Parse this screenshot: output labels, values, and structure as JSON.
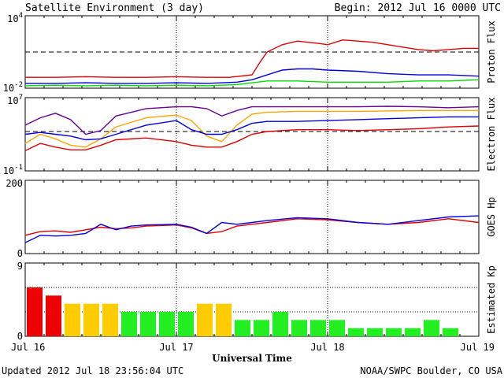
{
  "header": {
    "title": "Satellite Environment (3 day)",
    "begin": "Begin:  2012 Jul 16 0000 UTC"
  },
  "footer": {
    "updated": "Updated 2012 Jul 18 23:56:04 UTC",
    "credit": "NOAA/SWPC Boulder, CO USA",
    "xlabel": "Universal Time"
  },
  "x_ticks": [
    "Jul 16",
    "Jul 17",
    "Jul 18",
    "Jul 19"
  ],
  "chart_data": [
    {
      "type": "line",
      "panel": "proton",
      "ylabel": "Proton Flux",
      "y_ticks": [
        "10^4",
        "10^-2"
      ],
      "ylog": true,
      "ylim": [
        -2,
        4
      ],
      "x_unit": "days since Jul 16 0000 UTC",
      "threshold": 1,
      "series": [
        {
          "color": "#e00000",
          "x": [
            0,
            0.2,
            0.4,
            0.6,
            0.8,
            1.0,
            1.2,
            1.35,
            1.5,
            1.55,
            1.6,
            1.7,
            1.8,
            1.95,
            2.0,
            2.1,
            2.2,
            2.3,
            2.4,
            2.5,
            2.6,
            2.7,
            2.8,
            2.9,
            3.0
          ],
          "y": [
            -1.1,
            -1.1,
            -1.05,
            -1.1,
            -1.1,
            -1.05,
            -1.1,
            -1.1,
            -0.9,
            0.1,
            1.0,
            1.6,
            1.9,
            1.7,
            1.6,
            2.0,
            1.9,
            1.8,
            1.6,
            1.4,
            1.2,
            1.1,
            1.2,
            1.3,
            1.3
          ]
        },
        {
          "color": "#0000e0",
          "x": [
            0,
            0.2,
            0.4,
            0.6,
            0.8,
            1.0,
            1.2,
            1.4,
            1.5,
            1.6,
            1.7,
            1.8,
            1.9,
            2.0,
            2.2,
            2.4,
            2.6,
            2.8,
            3.0
          ],
          "y": [
            -1.6,
            -1.6,
            -1.55,
            -1.6,
            -1.6,
            -1.55,
            -1.6,
            -1.5,
            -1.3,
            -0.9,
            -0.5,
            -0.4,
            -0.4,
            -0.5,
            -0.6,
            -0.8,
            -0.9,
            -0.9,
            -1.0
          ]
        },
        {
          "color": "#00dd00",
          "x": [
            0,
            0.2,
            0.4,
            0.6,
            0.8,
            1.0,
            1.2,
            1.4,
            1.6,
            1.8,
            2.0,
            2.2,
            2.4,
            2.6,
            2.8,
            3.0
          ],
          "y": [
            -1.8,
            -1.75,
            -1.8,
            -1.75,
            -1.8,
            -1.75,
            -1.8,
            -1.7,
            -1.4,
            -1.4,
            -1.5,
            -1.5,
            -1.5,
            -1.4,
            -1.4,
            -1.3
          ]
        }
      ]
    },
    {
      "type": "line",
      "panel": "electron",
      "ylabel": "Electron Flux",
      "y_ticks": [
        "10^7",
        "10^-1"
      ],
      "ylog": true,
      "ylim": [
        -1,
        7
      ],
      "threshold": 3.3,
      "series": [
        {
          "color": "#660099",
          "x": [
            0,
            0.1,
            0.2,
            0.3,
            0.4,
            0.5,
            0.6,
            0.8,
            1.0,
            1.1,
            1.2,
            1.3,
            1.4,
            1.5,
            1.6,
            1.8,
            2.0,
            2.2,
            2.4,
            2.6,
            2.8,
            3.0
          ],
          "y": [
            4.0,
            4.8,
            5.3,
            4.6,
            3.0,
            3.4,
            5.0,
            5.8,
            6.0,
            6.0,
            5.8,
            5.0,
            5.6,
            6.0,
            6.0,
            6.0,
            6.0,
            6.0,
            6.05,
            6.0,
            5.9,
            6.0
          ]
        },
        {
          "color": "#ffa500",
          "x": [
            0,
            0.1,
            0.2,
            0.3,
            0.4,
            0.5,
            0.6,
            0.8,
            1.0,
            1.1,
            1.2,
            1.3,
            1.4,
            1.5,
            1.6,
            1.8,
            2.0,
            2.2,
            2.4,
            2.6,
            2.8,
            3.0
          ],
          "y": [
            2.0,
            3.0,
            2.5,
            1.8,
            1.6,
            2.5,
            3.8,
            4.8,
            5.1,
            4.5,
            2.8,
            2.2,
            4.0,
            5.2,
            5.4,
            5.5,
            5.5,
            5.5,
            5.55,
            5.6,
            5.6,
            5.6
          ]
        },
        {
          "color": "#0000e0",
          "x": [
            0,
            0.1,
            0.2,
            0.3,
            0.4,
            0.5,
            0.6,
            0.8,
            1.0,
            1.1,
            1.2,
            1.3,
            1.4,
            1.5,
            1.6,
            1.8,
            2.0,
            2.2,
            2.4,
            2.6,
            2.8,
            3.0
          ],
          "y": [
            3.0,
            3.2,
            3.0,
            2.8,
            2.4,
            2.5,
            3.0,
            4.0,
            4.5,
            3.5,
            3.0,
            3.0,
            3.5,
            4.2,
            4.4,
            4.4,
            4.5,
            4.6,
            4.7,
            4.8,
            4.9,
            4.9
          ]
        },
        {
          "color": "#e00000",
          "x": [
            0,
            0.1,
            0.2,
            0.3,
            0.4,
            0.5,
            0.6,
            0.8,
            1.0,
            1.1,
            1.2,
            1.3,
            1.4,
            1.5,
            1.6,
            1.8,
            2.0,
            2.2,
            2.4,
            2.6,
            2.8,
            3.0
          ],
          "y": [
            1.2,
            2.0,
            1.6,
            1.3,
            1.3,
            1.8,
            2.4,
            2.6,
            2.2,
            1.8,
            1.6,
            1.6,
            2.2,
            3.0,
            3.3,
            3.5,
            3.5,
            3.4,
            3.5,
            3.6,
            3.8,
            3.9
          ]
        }
      ]
    },
    {
      "type": "line",
      "panel": "goes_hp",
      "ylabel": "GOES Hp",
      "y_ticks": [
        "200",
        "0"
      ],
      "ylim": [
        0,
        200
      ],
      "series": [
        {
          "color": "#e00000",
          "x": [
            0,
            0.1,
            0.2,
            0.3,
            0.4,
            0.5,
            0.6,
            0.7,
            0.8,
            1.0,
            1.1,
            1.2,
            1.3,
            1.4,
            1.5,
            1.6,
            1.8,
            2.0,
            2.2,
            2.4,
            2.6,
            2.8,
            3.0
          ],
          "y": [
            50,
            60,
            62,
            58,
            65,
            72,
            68,
            70,
            75,
            78,
            70,
            55,
            60,
            75,
            80,
            85,
            95,
            92,
            85,
            80,
            85,
            95,
            85
          ]
        },
        {
          "color": "#0000e0",
          "x": [
            0,
            0.1,
            0.2,
            0.3,
            0.4,
            0.5,
            0.6,
            0.7,
            0.8,
            1.0,
            1.1,
            1.2,
            1.3,
            1.4,
            1.5,
            1.6,
            1.8,
            2.0,
            2.2,
            2.4,
            2.6,
            2.8,
            3.0
          ],
          "y": [
            30,
            50,
            48,
            50,
            55,
            80,
            65,
            75,
            78,
            80,
            72,
            55,
            85,
            80,
            85,
            90,
            98,
            95,
            85,
            80,
            90,
            100,
            103
          ]
        }
      ]
    },
    {
      "type": "bar",
      "panel": "kp",
      "ylabel": "Estimated Kp",
      "y_ticks": [
        "9",
        "0"
      ],
      "ylim": [
        0,
        9
      ],
      "values": [
        6,
        5,
        4,
        4,
        4,
        3,
        3,
        3,
        3,
        4,
        4,
        2,
        2,
        3,
        2,
        2,
        2,
        1,
        1,
        1,
        1,
        2,
        1
      ],
      "colors": [
        "#ee0000",
        "#ee0000",
        "#ffcc00",
        "#ffcc00",
        "#ffcc00",
        "#22ee22",
        "#22ee22",
        "#22ee22",
        "#22ee22",
        "#ffcc00",
        "#ffcc00",
        "#22ee22",
        "#22ee22",
        "#22ee22",
        "#22ee22",
        "#22ee22",
        "#22ee22",
        "#22ee22",
        "#22ee22",
        "#22ee22",
        "#22ee22",
        "#22ee22",
        "#22ee22"
      ]
    }
  ]
}
